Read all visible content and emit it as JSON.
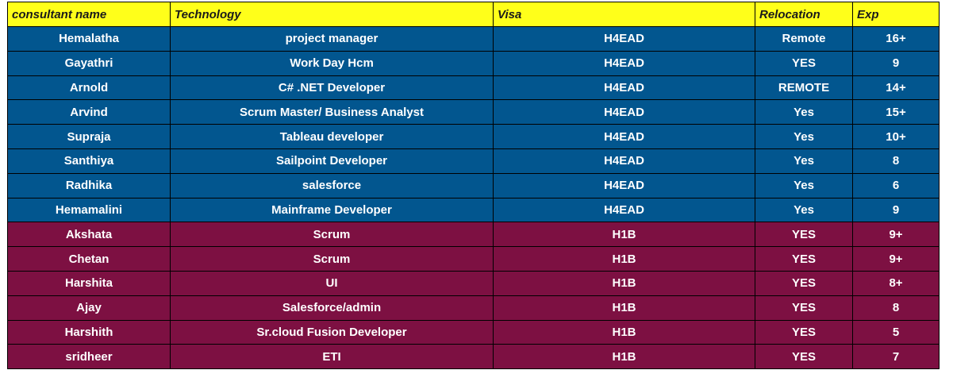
{
  "colors": {
    "header": "#ffff1a",
    "h4ead_row": "#02568f",
    "h1b_row": "#7d1042"
  },
  "headers": [
    "consultant name",
    "Technology",
    "Visa",
    "Relocation",
    "Exp"
  ],
  "rows": [
    [
      "Hemalatha",
      "project manager",
      "H4EAD",
      "Remote",
      "16+"
    ],
    [
      "Gayathri",
      "Work Day Hcm",
      "H4EAD",
      "YES",
      "9"
    ],
    [
      "Arnold",
      "C# .NET Developer",
      "H4EAD",
      "REMOTE",
      "14+"
    ],
    [
      "Arvind",
      "Scrum Master/ Business Analyst",
      "H4EAD",
      "Yes",
      "15+"
    ],
    [
      "Supraja",
      "Tableau developer",
      "H4EAD",
      "Yes",
      "10+"
    ],
    [
      "Santhiya",
      "Sailpoint Developer",
      "H4EAD",
      "Yes",
      "8"
    ],
    [
      "Radhika",
      "salesforce",
      "H4EAD",
      "Yes",
      "6"
    ],
    [
      "Hemamalini",
      "Mainframe Developer",
      "H4EAD",
      "Yes",
      "9"
    ],
    [
      "Akshata",
      "Scrum",
      "H1B",
      "YES",
      "9+"
    ],
    [
      "Chetan",
      "Scrum",
      "H1B",
      "YES",
      "9+"
    ],
    [
      "Harshita",
      "UI",
      "H1B",
      "YES",
      "8+"
    ],
    [
      "Ajay",
      "Salesforce/admin",
      "H1B",
      "YES",
      "8"
    ],
    [
      "Harshith",
      "Sr.cloud Fusion Developer",
      "H1B",
      "YES",
      "5"
    ],
    [
      "sridheer",
      "ETI",
      "H1B",
      "YES",
      "7"
    ]
  ]
}
